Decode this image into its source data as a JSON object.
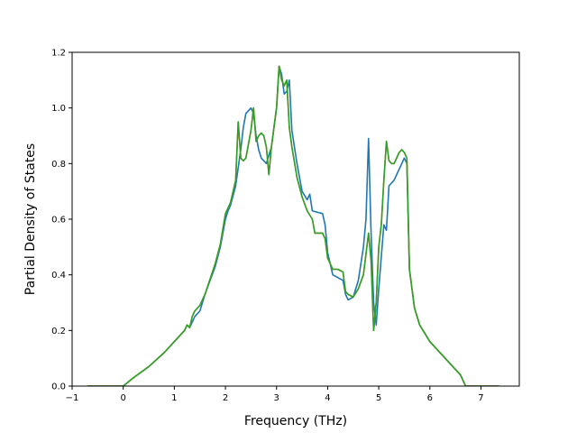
{
  "chart_data": {
    "type": "line",
    "title": "",
    "xlabel": "Frequency (THz)",
    "ylabel": "Partial Density of States",
    "xlim": [
      -1.0,
      7.75
    ],
    "ylim": [
      0.0,
      1.2
    ],
    "xticks": [
      -1,
      0,
      1,
      2,
      3,
      4,
      5,
      6,
      7
    ],
    "yticks": [
      0.0,
      0.2,
      0.4,
      0.6,
      0.8,
      1.0,
      1.2
    ],
    "xtick_labels": [
      "−1",
      "0",
      "1",
      "2",
      "3",
      "4",
      "5",
      "6",
      "7"
    ],
    "ytick_labels": [
      "0.0",
      "0.2",
      "0.4",
      "0.6",
      "0.8",
      "1.0",
      "1.2"
    ],
    "grid": false,
    "series": [
      {
        "color": "#1f77b4",
        "x": [
          -0.7,
          0.0,
          0.2,
          0.5,
          0.8,
          1.0,
          1.2,
          1.25,
          1.3,
          1.4,
          1.5,
          1.6,
          1.8,
          1.9,
          2.0,
          2.05,
          2.1,
          2.2,
          2.3,
          2.35,
          2.4,
          2.5,
          2.55,
          2.6,
          2.65,
          2.7,
          2.8,
          2.9,
          3.0,
          3.05,
          3.1,
          3.15,
          3.2,
          3.25,
          3.3,
          3.4,
          3.5,
          3.6,
          3.65,
          3.7,
          3.9,
          3.95,
          4.0,
          4.1,
          4.3,
          4.35,
          4.4,
          4.5,
          4.6,
          4.7,
          4.75,
          4.8,
          4.85,
          4.9,
          4.95,
          5.0,
          5.1,
          5.15,
          5.2,
          5.3,
          5.4,
          5.5,
          5.55,
          5.6,
          5.7,
          5.8,
          6.0,
          6.3,
          6.6,
          6.7,
          7.0,
          7.35
        ],
        "y": [
          0.0,
          0.0,
          0.03,
          0.07,
          0.12,
          0.16,
          0.2,
          0.22,
          0.21,
          0.25,
          0.27,
          0.33,
          0.43,
          0.5,
          0.6,
          0.63,
          0.65,
          0.72,
          0.85,
          0.93,
          0.98,
          1.0,
          0.98,
          0.9,
          0.85,
          0.82,
          0.8,
          0.86,
          1.0,
          1.15,
          1.12,
          1.05,
          1.06,
          1.1,
          0.92,
          0.8,
          0.7,
          0.67,
          0.69,
          0.63,
          0.62,
          0.58,
          0.48,
          0.4,
          0.38,
          0.33,
          0.31,
          0.32,
          0.38,
          0.5,
          0.6,
          0.89,
          0.55,
          0.3,
          0.22,
          0.35,
          0.58,
          0.56,
          0.72,
          0.74,
          0.78,
          0.82,
          0.8,
          0.42,
          0.28,
          0.22,
          0.16,
          0.1,
          0.04,
          0.0,
          0.0,
          0.0
        ]
      },
      {
        "color": "#ff7f0e",
        "x": [
          -0.7,
          0.0,
          0.2,
          0.5,
          0.8,
          1.0,
          1.2,
          1.25,
          1.3,
          1.35,
          1.4,
          1.5,
          1.6,
          1.8,
          1.9,
          2.0,
          2.1,
          2.2,
          2.25,
          2.3,
          2.35,
          2.4,
          2.5,
          2.55,
          2.6,
          2.65,
          2.7,
          2.75,
          2.8,
          2.85,
          2.9,
          3.0,
          3.05,
          3.1,
          3.15,
          3.2,
          3.25,
          3.3,
          3.4,
          3.5,
          3.6,
          3.7,
          3.75,
          3.8,
          3.9,
          3.95,
          4.0,
          4.1,
          4.2,
          4.3,
          4.35,
          4.4,
          4.5,
          4.6,
          4.7,
          4.8,
          4.85,
          4.9,
          4.95,
          5.0,
          5.05,
          5.1,
          5.15,
          5.2,
          5.25,
          5.3,
          5.4,
          5.45,
          5.5,
          5.55,
          5.6,
          5.7,
          5.8,
          6.0,
          6.3,
          6.6,
          6.7,
          7.0,
          7.35
        ],
        "y": [
          0.0,
          0.0,
          0.03,
          0.07,
          0.12,
          0.16,
          0.2,
          0.22,
          0.21,
          0.25,
          0.27,
          0.29,
          0.33,
          0.44,
          0.51,
          0.62,
          0.66,
          0.74,
          0.95,
          0.82,
          0.81,
          0.82,
          0.92,
          1.0,
          0.88,
          0.9,
          0.91,
          0.9,
          0.86,
          0.76,
          0.86,
          1.0,
          1.15,
          1.1,
          1.08,
          1.1,
          0.93,
          0.86,
          0.75,
          0.68,
          0.63,
          0.6,
          0.55,
          0.55,
          0.55,
          0.53,
          0.46,
          0.42,
          0.42,
          0.41,
          0.34,
          0.33,
          0.32,
          0.35,
          0.4,
          0.55,
          0.45,
          0.2,
          0.3,
          0.5,
          0.58,
          0.74,
          0.88,
          0.81,
          0.8,
          0.8,
          0.84,
          0.85,
          0.84,
          0.82,
          0.42,
          0.28,
          0.22,
          0.16,
          0.1,
          0.04,
          0.0,
          0.0,
          0.0
        ]
      },
      {
        "color": "#2ca02c",
        "x": [
          -0.7,
          0.0,
          0.2,
          0.5,
          0.8,
          1.0,
          1.2,
          1.25,
          1.3,
          1.35,
          1.4,
          1.5,
          1.6,
          1.8,
          1.9,
          2.0,
          2.1,
          2.2,
          2.25,
          2.3,
          2.35,
          2.4,
          2.5,
          2.55,
          2.6,
          2.65,
          2.7,
          2.75,
          2.8,
          2.85,
          2.9,
          3.0,
          3.05,
          3.1,
          3.15,
          3.2,
          3.25,
          3.3,
          3.4,
          3.5,
          3.6,
          3.7,
          3.75,
          3.8,
          3.9,
          3.95,
          4.0,
          4.1,
          4.2,
          4.3,
          4.35,
          4.4,
          4.5,
          4.6,
          4.7,
          4.8,
          4.85,
          4.9,
          4.95,
          5.0,
          5.05,
          5.1,
          5.15,
          5.2,
          5.25,
          5.3,
          5.4,
          5.45,
          5.5,
          5.55,
          5.6,
          5.7,
          5.8,
          6.0,
          6.3,
          6.6,
          6.7,
          7.0,
          7.35
        ],
        "y": [
          0.0,
          0.0,
          0.03,
          0.07,
          0.12,
          0.16,
          0.2,
          0.22,
          0.21,
          0.25,
          0.27,
          0.29,
          0.33,
          0.44,
          0.51,
          0.62,
          0.66,
          0.74,
          0.95,
          0.82,
          0.81,
          0.82,
          0.92,
          1.0,
          0.88,
          0.9,
          0.91,
          0.9,
          0.86,
          0.76,
          0.86,
          1.0,
          1.15,
          1.1,
          1.08,
          1.1,
          0.93,
          0.86,
          0.75,
          0.68,
          0.63,
          0.6,
          0.55,
          0.55,
          0.55,
          0.53,
          0.46,
          0.42,
          0.42,
          0.41,
          0.34,
          0.33,
          0.32,
          0.35,
          0.4,
          0.55,
          0.45,
          0.2,
          0.3,
          0.5,
          0.58,
          0.74,
          0.88,
          0.81,
          0.8,
          0.8,
          0.84,
          0.85,
          0.84,
          0.82,
          0.42,
          0.28,
          0.22,
          0.16,
          0.1,
          0.04,
          0.0,
          0.0,
          0.0
        ]
      }
    ]
  }
}
